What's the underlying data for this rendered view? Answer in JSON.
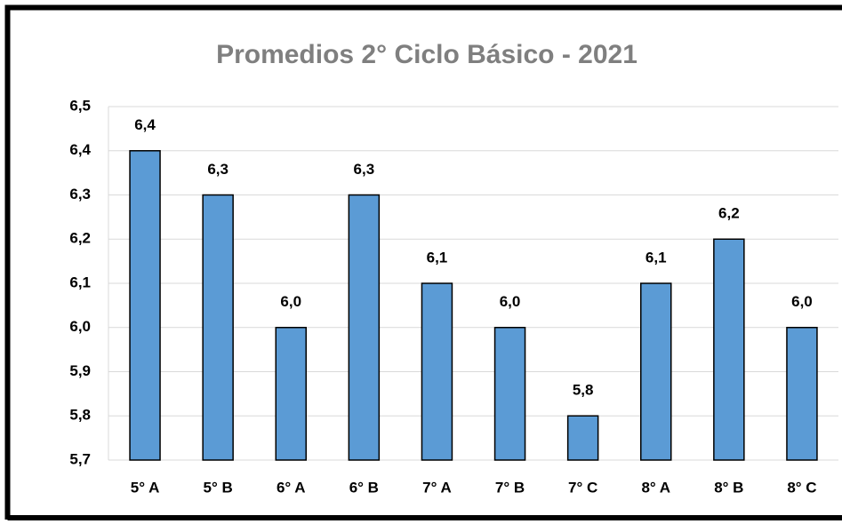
{
  "chart_data": {
    "type": "bar",
    "title": "Promedios 2° Ciclo Básico - 2021",
    "categories": [
      "5° A",
      "5° B",
      "6° A",
      "6° B",
      "7° A",
      "7° B",
      "7° C",
      "8° A",
      "8° B",
      "8° C"
    ],
    "values": [
      6.4,
      6.3,
      6.0,
      6.3,
      6.1,
      6.0,
      5.8,
      6.1,
      6.2,
      6.0
    ],
    "value_labels": [
      "6,4",
      "6,3",
      "6,0",
      "6,3",
      "6,1",
      "6,0",
      "5,8",
      "6,1",
      "6,2",
      "6,0"
    ],
    "color": "#5b9bd5",
    "ylim": [
      5.7,
      6.5
    ],
    "yticks": [
      {
        "value": 5.7,
        "label": "5,7"
      },
      {
        "value": 5.8,
        "label": "5,8"
      },
      {
        "value": 5.9,
        "label": "5,9"
      },
      {
        "value": 6.0,
        "label": "6,0"
      },
      {
        "value": 6.1,
        "label": "6,1"
      },
      {
        "value": 6.2,
        "label": "6,2"
      },
      {
        "value": 6.3,
        "label": "6,3"
      },
      {
        "value": 6.4,
        "label": "6,4"
      },
      {
        "value": 6.5,
        "label": "6,5"
      }
    ],
    "grid": true
  }
}
